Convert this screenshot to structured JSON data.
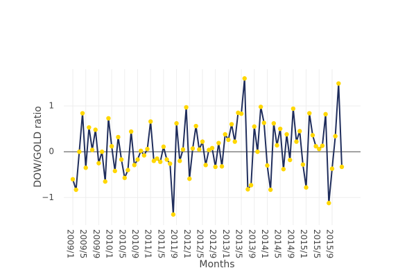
{
  "chart_data": {
    "type": "line",
    "xlabel": "Months",
    "ylabel": "DOW/GOLD ratio",
    "categories": [
      "2009/1",
      null,
      null,
      null,
      "2009/5",
      null,
      null,
      null,
      "2009/9",
      null,
      null,
      null,
      "2010/1",
      null,
      null,
      null,
      "2010/5",
      null,
      null,
      null,
      "2010/9",
      null,
      null,
      null,
      "2011/1",
      null,
      null,
      null,
      "2011/5",
      null,
      null,
      null,
      "2011/9",
      null,
      null,
      null,
      "2012/1",
      null,
      null,
      null,
      "2012/5",
      null,
      null,
      null,
      "2012/9",
      null,
      null,
      null,
      "2013/1",
      null,
      null,
      null,
      "2013/5",
      null,
      null,
      null,
      "2013/9",
      null,
      null,
      null,
      "2014/1",
      null,
      null,
      null,
      "2014/5",
      null,
      null,
      null,
      "2014/9",
      null,
      null,
      null,
      "2015/1",
      null,
      null,
      null,
      "2015/5",
      null,
      null,
      null,
      "2015/9",
      null,
      null,
      null
    ],
    "series": [
      {
        "color": "#1f2d5c",
        "marker_color": "#ffd700",
        "values": [
          -0.6,
          -0.83,
          0.0,
          0.84,
          -0.35,
          0.53,
          0.04,
          0.48,
          -0.25,
          0.0,
          -0.65,
          0.73,
          0.12,
          -0.42,
          0.32,
          -0.17,
          -0.57,
          -0.4,
          0.44,
          -0.29,
          -0.17,
          0.02,
          -0.08,
          0.06,
          0.66,
          -0.2,
          -0.15,
          -0.22,
          0.11,
          -0.17,
          -0.26,
          -1.37,
          0.62,
          -0.2,
          0.05,
          0.97,
          -0.59,
          0.07,
          0.56,
          0.05,
          0.22,
          -0.29,
          0.04,
          0.08,
          -0.33,
          0.19,
          -0.32,
          0.38,
          0.26,
          0.6,
          0.22,
          0.85,
          0.83,
          1.6,
          -0.82,
          -0.73,
          0.55,
          0.0,
          0.98,
          0.63,
          -0.3,
          -0.83,
          0.62,
          0.14,
          0.5,
          -0.38,
          0.38,
          -0.18,
          0.94,
          0.22,
          0.45,
          -0.28,
          -0.78,
          0.84,
          0.36,
          0.12,
          0.06,
          0.13,
          0.82,
          -1.12,
          -0.37,
          0.34,
          1.49,
          -0.33
        ]
      }
    ],
    "ylim": [
      -1.6,
      1.8
    ],
    "yticks": [
      {
        "value": -1,
        "label": "−1"
      },
      0,
      1
    ],
    "grid": true,
    "zeroline": true
  }
}
